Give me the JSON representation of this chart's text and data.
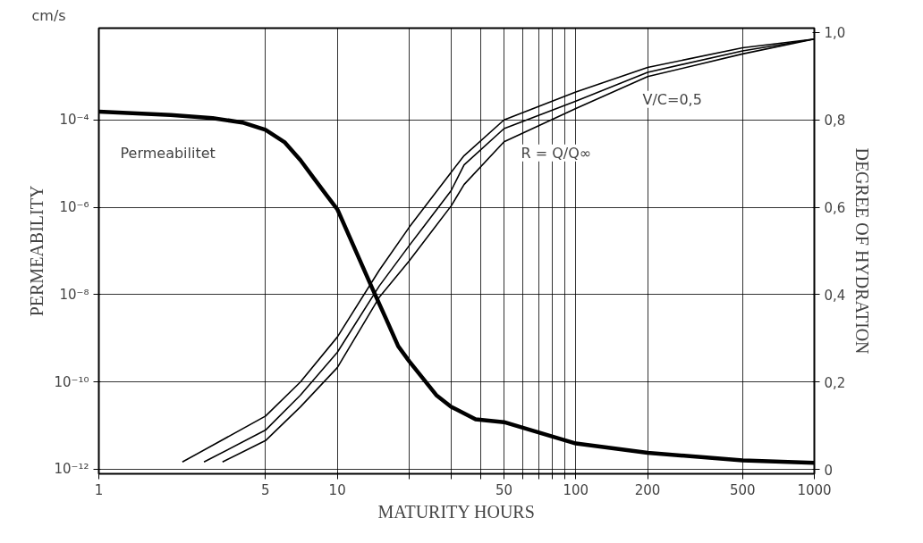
{
  "chart_data": {
    "type": "line",
    "xlabel": "MATURITY HOURS",
    "ylabel": "PERMEABILITY",
    "y2label": "DEGREE OF HYDRATION",
    "log": "xy",
    "grid": true,
    "marker": "none",
    "line_style": "solid",
    "xlim": [
      1,
      1000
    ],
    "xticks": [
      1,
      5,
      10,
      {
        "value": 20,
        "label": null
      },
      {
        "value": 30,
        "label": null
      },
      {
        "value": 40,
        "label": null
      },
      50,
      {
        "value": 60,
        "label": null
      },
      {
        "value": 70,
        "label": null
      },
      {
        "value": 80,
        "label": null
      },
      {
        "value": 90,
        "label": null
      },
      100,
      200,
      500,
      1000
    ],
    "ylim": [
      7.9e-13,
      0.0126
    ],
    "yticks": [
      {
        "value": 1e-12,
        "label": "10⁻¹²"
      },
      {
        "value": 1e-10,
        "label": "10⁻¹⁰"
      },
      {
        "value": 1e-08,
        "label": "10⁻⁸"
      },
      {
        "value": 1e-06,
        "label": "10⁻⁶"
      },
      {
        "value": 0.0001,
        "label": "10⁻⁴"
      }
    ],
    "y2lim": [
      -0.01,
      1.01
    ],
    "y2ticks": [
      0,
      {
        "value": 0.2,
        "label": "0,2"
      },
      {
        "value": 0.4,
        "label": "0,4"
      },
      {
        "value": 0.6,
        "label": "0,6"
      },
      {
        "value": 0.8,
        "label": "0,8"
      },
      {
        "value": 1.0,
        "label": "1,0"
      }
    ],
    "series": [
      {
        "color": "#000000",
        "x": [
          1,
          2,
          3,
          4,
          5,
          6,
          7,
          8,
          9,
          10,
          12,
          14,
          16,
          18,
          20,
          23,
          26,
          30,
          38,
          50,
          100,
          200,
          500,
          1000
        ],
        "values": [
          0.000155,
          0.00013,
          0.00011,
          8.7e-05,
          5.9e-05,
          3.1e-05,
          1.2e-05,
          4.5e-06,
          1.9e-06,
          9e-07,
          9.5e-08,
          1.4e-08,
          2.8e-09,
          6.6e-10,
          3e-10,
          1.15e-10,
          5e-11,
          2.7e-11,
          1.4e-11,
          1.2e-11,
          3.9e-12,
          2.4e-12,
          1.6e-12,
          1.4e-12
        ]
      },
      {
        "color": "#000000",
        "axis": "y2",
        "x": [
          2.24,
          5,
          7,
          10,
          15,
          20,
          30,
          34,
          50,
          100,
          200,
          500,
          1000
        ],
        "values": [
          0.017,
          0.122,
          0.2,
          0.303,
          0.456,
          0.554,
          0.68,
          0.718,
          0.8,
          0.864,
          0.92,
          0.965,
          0.985
        ]
      },
      {
        "color": "#000000",
        "axis": "y2",
        "x": [
          2.76,
          5,
          7,
          10,
          15,
          20,
          30,
          34,
          50,
          100,
          200,
          500,
          1000
        ],
        "values": [
          0.017,
          0.09,
          0.17,
          0.268,
          0.42,
          0.512,
          0.638,
          0.697,
          0.78,
          0.843,
          0.909,
          0.958,
          0.985
        ]
      },
      {
        "color": "#000000",
        "axis": "y2",
        "x": [
          3.3,
          5,
          7,
          10,
          15,
          20,
          30,
          34,
          50,
          100,
          200,
          500,
          1000
        ],
        "values": [
          0.017,
          0.066,
          0.143,
          0.233,
          0.394,
          0.477,
          0.603,
          0.652,
          0.75,
          0.826,
          0.899,
          0.951,
          0.985
        ]
      }
    ],
    "annotations": [
      "cm/s",
      "Permeabilitet",
      "R = Q/Q∞",
      "V/C=0,5"
    ]
  }
}
